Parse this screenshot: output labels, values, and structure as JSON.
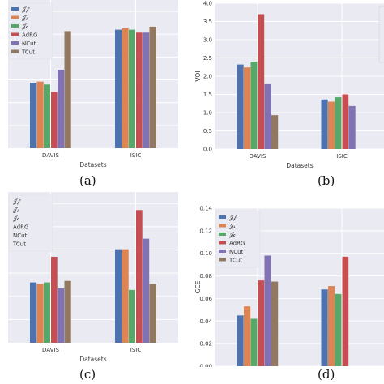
{
  "colors": {
    "fx": "#4c72b0",
    "fs": "#dd8452",
    "fc": "#55a868",
    "AdRG": "#c44e52",
    "NCut": "#8172b3",
    "TCut": "#937860"
  },
  "captions": [
    "(a)",
    "(b)",
    "(c)",
    "(d)"
  ],
  "chart_data": [
    {
      "type": "bar",
      "xlabel": "Datasets",
      "ylabel": "",
      "categories": [
        "DAVIS",
        "ISIC"
      ],
      "ylim": [
        0,
        1
      ],
      "yticks": [],
      "legend": "top-left",
      "series": [
        {
          "name": "𝒥𝒻",
          "key": "fx",
          "values": [
            0.44,
            0.8
          ]
        },
        {
          "name": "𝒥𝓈",
          "key": "fs",
          "values": [
            0.45,
            0.81
          ]
        },
        {
          "name": "𝒥𝒸",
          "key": "fc",
          "values": [
            0.43,
            0.8
          ]
        },
        {
          "name": "AdRG",
          "key": "AdRG",
          "values": [
            0.38,
            0.78
          ]
        },
        {
          "name": "NCut",
          "key": "NCut",
          "values": [
            0.53,
            0.78
          ]
        },
        {
          "name": "TCut",
          "key": "TCut",
          "values": [
            0.79,
            0.82
          ]
        }
      ]
    },
    {
      "type": "bar",
      "xlabel": "Datasets",
      "ylabel": "VOI",
      "categories": [
        "DAVIS",
        "ISIC"
      ],
      "ylim": [
        0,
        4.0
      ],
      "yticks": [
        "0.0",
        "0.5",
        "1.0",
        "1.5",
        "2.0",
        "2.5",
        "3.0",
        "3.5",
        "4.0"
      ],
      "legend": "top-right",
      "series": [
        {
          "name": "𝒥𝒻",
          "key": "fx",
          "values": [
            2.32,
            1.36
          ]
        },
        {
          "name": "𝒥𝓈",
          "key": "fs",
          "values": [
            2.24,
            1.3
          ]
        },
        {
          "name": "𝒥𝒸",
          "key": "fc",
          "values": [
            2.4,
            1.42
          ]
        },
        {
          "name": "AdRG",
          "key": "AdRG",
          "values": [
            3.7,
            1.5
          ]
        },
        {
          "name": "NCut",
          "key": "NCut",
          "values": [
            1.78,
            1.18
          ]
        },
        {
          "name": "TCut",
          "key": "TCut",
          "values": [
            0.93,
            null
          ]
        }
      ]
    },
    {
      "type": "bar",
      "xlabel": "Datasets",
      "ylabel": "",
      "categories": [
        "DAVIS",
        "ISIC"
      ],
      "ylim": [
        0,
        1
      ],
      "yticks": [],
      "legend": "top-left",
      "series": [
        {
          "name": "𝒥𝒻",
          "key": "fx",
          "values": [
            0.4,
            0.62
          ]
        },
        {
          "name": "𝒥𝓈",
          "key": "fs",
          "values": [
            0.39,
            0.62
          ]
        },
        {
          "name": "𝒥𝒸",
          "key": "fc",
          "values": [
            0.4,
            0.35
          ]
        },
        {
          "name": "AdRG",
          "key": "AdRG",
          "values": [
            0.57,
            0.88
          ]
        },
        {
          "name": "NCut",
          "key": "NCut",
          "values": [
            0.36,
            0.69
          ]
        },
        {
          "name": "TCut",
          "key": "TCut",
          "values": [
            0.41,
            0.39
          ]
        }
      ]
    },
    {
      "type": "bar",
      "xlabel": "Datasets",
      "ylabel": "GCE",
      "categories": [
        "DAVIS",
        "ISIC"
      ],
      "ylim": [
        0,
        0.14
      ],
      "yticks": [
        "0.00",
        "0.02",
        "0.04",
        "0.06",
        "0.08",
        "0.10",
        "0.12",
        "0.14"
      ],
      "legend": "top-left",
      "series": [
        {
          "name": "𝒥𝒻",
          "key": "fx",
          "values": [
            0.045,
            0.068
          ]
        },
        {
          "name": "𝒥𝓈",
          "key": "fs",
          "values": [
            0.053,
            0.071
          ]
        },
        {
          "name": "𝒥𝒸",
          "key": "fc",
          "values": [
            0.042,
            0.064
          ]
        },
        {
          "name": "AdRG",
          "key": "AdRG",
          "values": [
            0.076,
            0.097
          ]
        },
        {
          "name": "NCut",
          "key": "NCut",
          "values": [
            0.098,
            null
          ]
        },
        {
          "name": "TCut",
          "key": "TCut",
          "values": [
            0.075,
            null
          ]
        }
      ]
    }
  ]
}
